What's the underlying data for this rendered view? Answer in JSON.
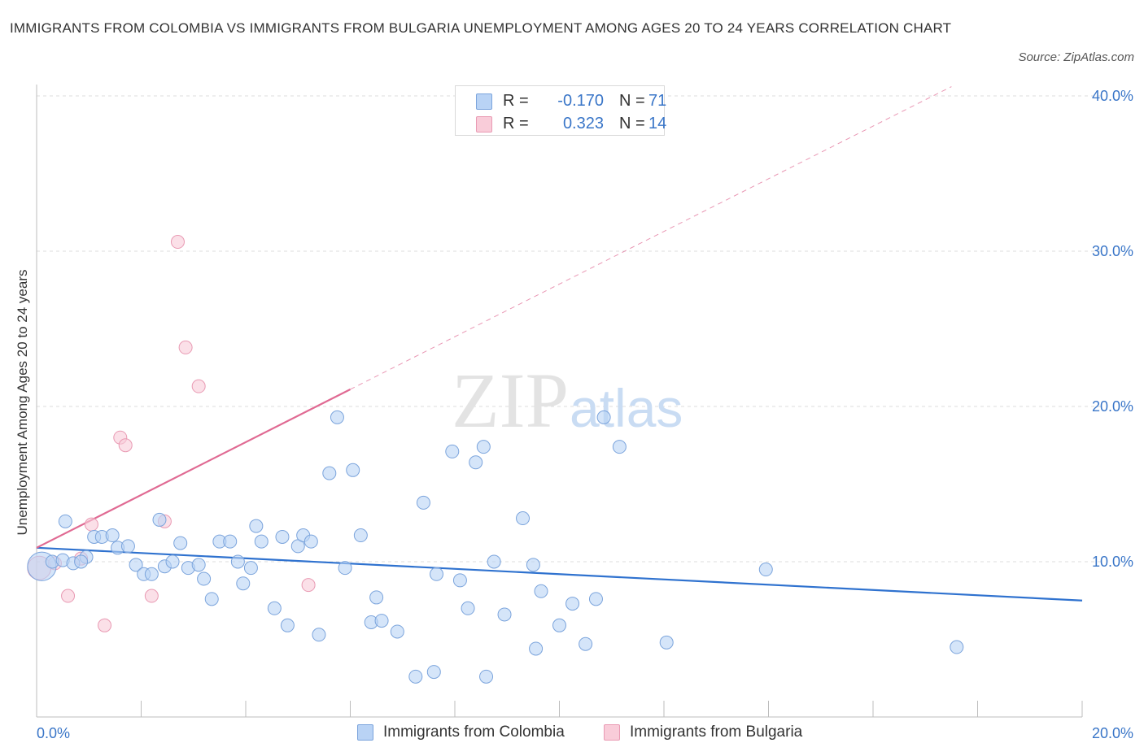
{
  "header": {
    "title": "IMMIGRANTS FROM COLOMBIA VS IMMIGRANTS FROM BULGARIA UNEMPLOYMENT AMONG AGES 20 TO 24 YEARS CORRELATION CHART",
    "source": "Source: ZipAtlas.com"
  },
  "watermark": {
    "zip": "ZIP",
    "atlas": "atlas"
  },
  "legend_top": {
    "rows": [
      {
        "r_label": "R =",
        "r_value": "-0.170",
        "n_label": "N =",
        "n_value": "71"
      },
      {
        "r_label": "R =",
        "r_value": "0.323",
        "n_label": "N =",
        "n_value": "14"
      }
    ]
  },
  "legend_bottom": {
    "colombia": "Immigrants from Colombia",
    "bulgaria": "Immigrants from Bulgaria"
  },
  "colors": {
    "colombia_fill": "#b9d3f5",
    "colombia_stroke": "#7ba4dc",
    "colombia_line": "#2f72cf",
    "bulgaria_fill": "#f9ccd9",
    "bulgaria_stroke": "#e99ab3",
    "bulgaria_line": "#e06a93",
    "tick_label": "#3a76c8",
    "grid": "#dcdcdc"
  },
  "chart_data": {
    "type": "scatter",
    "title": "IMMIGRANTS FROM COLOMBIA VS IMMIGRANTS FROM BULGARIA UNEMPLOYMENT AMONG AGES 20 TO 24 YEARS CORRELATION CHART",
    "xlabel": "",
    "ylabel": "Unemployment Among Ages 20 to 24 years",
    "xlim": [
      0,
      20
    ],
    "ylim": [
      0,
      40
    ],
    "x_tick_labels": [
      "0.0%",
      "20.0%"
    ],
    "x_tick_values": [
      0,
      20
    ],
    "y_ticks": [
      {
        "value": 10,
        "label": "10.0%"
      },
      {
        "value": 20,
        "label": "20.0%"
      },
      {
        "value": 30,
        "label": "30.0%"
      },
      {
        "value": 40,
        "label": "40.0%"
      }
    ],
    "grid": true,
    "legend_position": "top-center",
    "series": [
      {
        "name": "Immigrants from Colombia",
        "R": -0.17,
        "N": 71,
        "trend": {
          "x": [
            0,
            20
          ],
          "y": [
            10.9,
            7.5
          ],
          "style": "solid"
        },
        "points": [
          [
            0.1,
            9.7,
            2.2
          ],
          [
            0.3,
            10.0,
            1
          ],
          [
            0.5,
            10.1,
            1
          ],
          [
            0.7,
            9.9,
            1
          ],
          [
            0.55,
            12.6,
            1
          ],
          [
            0.95,
            10.3,
            1
          ],
          [
            1.1,
            11.6,
            1
          ],
          [
            1.25,
            11.6,
            1
          ],
          [
            1.45,
            11.7,
            1
          ],
          [
            1.55,
            10.9,
            1
          ],
          [
            1.75,
            11.0,
            1
          ],
          [
            1.9,
            9.8,
            1
          ],
          [
            2.05,
            9.2,
            1
          ],
          [
            2.2,
            9.2,
            1
          ],
          [
            2.35,
            12.7,
            1
          ],
          [
            2.45,
            9.7,
            1
          ],
          [
            2.6,
            10.0,
            1
          ],
          [
            2.75,
            11.2,
            1
          ],
          [
            2.9,
            9.6,
            1
          ],
          [
            3.1,
            9.8,
            1
          ],
          [
            3.2,
            8.9,
            1
          ],
          [
            3.35,
            7.6,
            1
          ],
          [
            3.5,
            11.3,
            1
          ],
          [
            3.7,
            11.3,
            1
          ],
          [
            3.85,
            10.0,
            1
          ],
          [
            3.95,
            8.6,
            1
          ],
          [
            4.1,
            9.6,
            1
          ],
          [
            4.2,
            12.3,
            1
          ],
          [
            4.3,
            11.3,
            1
          ],
          [
            4.55,
            7.0,
            1
          ],
          [
            4.7,
            11.6,
            1
          ],
          [
            4.8,
            5.9,
            1
          ],
          [
            5.0,
            11.0,
            1
          ],
          [
            5.1,
            11.7,
            1
          ],
          [
            5.25,
            11.3,
            1
          ],
          [
            5.4,
            5.3,
            1
          ],
          [
            5.6,
            15.7,
            1
          ],
          [
            5.75,
            19.3,
            1
          ],
          [
            5.9,
            9.6,
            1
          ],
          [
            6.05,
            15.9,
            1
          ],
          [
            6.2,
            11.7,
            1
          ],
          [
            6.4,
            6.1,
            1
          ],
          [
            6.5,
            7.7,
            1
          ],
          [
            6.6,
            6.2,
            1
          ],
          [
            6.9,
            5.5,
            1
          ],
          [
            7.25,
            2.6,
            1
          ],
          [
            7.4,
            13.8,
            1
          ],
          [
            7.6,
            2.9,
            1
          ],
          [
            7.65,
            9.2,
            1
          ],
          [
            7.95,
            17.1,
            1
          ],
          [
            8.1,
            8.8,
            1
          ],
          [
            8.25,
            7.0,
            1
          ],
          [
            8.4,
            16.4,
            1
          ],
          [
            8.55,
            17.4,
            1
          ],
          [
            8.6,
            2.6,
            1
          ],
          [
            8.75,
            10.0,
            1
          ],
          [
            8.95,
            6.6,
            1
          ],
          [
            9.3,
            12.8,
            1
          ],
          [
            9.5,
            9.8,
            1
          ],
          [
            9.55,
            4.4,
            1
          ],
          [
            9.65,
            8.1,
            1
          ],
          [
            10.0,
            5.9,
            1
          ],
          [
            10.25,
            7.3,
            1
          ],
          [
            10.5,
            4.7,
            1
          ],
          [
            10.7,
            7.6,
            1
          ],
          [
            10.85,
            19.3,
            1
          ],
          [
            11.15,
            17.4,
            1
          ],
          [
            12.05,
            4.8,
            1
          ],
          [
            13.95,
            9.5,
            1
          ],
          [
            17.6,
            4.5,
            1
          ],
          [
            0.85,
            10.0,
            1
          ]
        ]
      },
      {
        "name": "Immigrants from Bulgaria",
        "R": 0.323,
        "N": 14,
        "trend": {
          "x": [
            0,
            6
          ],
          "y": [
            10.9,
            21.1
          ],
          "style": "solid",
          "extended_x": [
            6,
            17.5
          ],
          "extended_y": [
            21.1,
            40.6
          ],
          "extended_style": "dashed"
        },
        "points": [
          [
            0.05,
            9.6,
            1.8
          ],
          [
            0.35,
            9.9,
            1
          ],
          [
            0.6,
            7.8,
            1
          ],
          [
            0.85,
            10.2,
            1
          ],
          [
            1.05,
            12.4,
            1
          ],
          [
            1.3,
            5.9,
            1
          ],
          [
            1.6,
            18.0,
            1
          ],
          [
            1.7,
            17.5,
            1
          ],
          [
            2.2,
            7.8,
            1
          ],
          [
            2.45,
            12.6,
            1
          ],
          [
            2.7,
            30.6,
            1
          ],
          [
            2.85,
            23.8,
            1
          ],
          [
            3.1,
            21.3,
            1
          ],
          [
            5.2,
            8.5,
            1
          ]
        ]
      }
    ]
  }
}
